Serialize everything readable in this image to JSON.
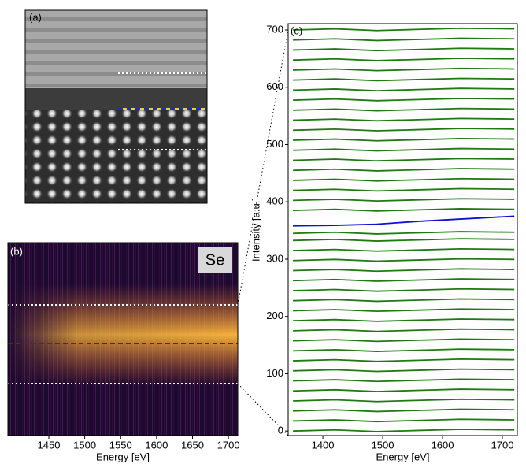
{
  "panels": {
    "a": {
      "label": "(a)"
    }
  },
  "chart_data": [
    {
      "type": "heatmap",
      "label": "(b)",
      "annotation": "Se",
      "xlabel": "Energy [eV]",
      "xlim": [
        1393,
        1713
      ],
      "xticks": [
        1450,
        1500,
        1550,
        1600,
        1650,
        1700
      ]
    },
    {
      "type": "line",
      "label": "(c)",
      "xlabel": "Energy [eV]",
      "ylabel": "Intensity [a.u.]",
      "color": "#1f7a12",
      "x": [
        1350,
        1420,
        1490,
        1560,
        1630,
        1720
      ],
      "series": [
        {
          "values": [
            0,
            2,
            -1,
            1,
            3,
            2
          ]
        },
        {
          "values": [
            17.5,
            19.5,
            16.5,
            18.5,
            20.5,
            19.5
          ]
        },
        {
          "values": [
            35,
            37,
            34,
            36,
            38,
            37
          ]
        },
        {
          "values": [
            52.5,
            54.5,
            51.5,
            53.5,
            55.5,
            54.5
          ]
        },
        {
          "values": [
            70,
            72,
            69,
            71,
            73,
            72
          ]
        },
        {
          "values": [
            87.5,
            89.5,
            86.5,
            88.5,
            90.5,
            89.5
          ]
        },
        {
          "values": [
            105,
            107,
            104,
            106,
            108,
            107
          ]
        },
        {
          "values": [
            122.5,
            124.5,
            121.5,
            123.5,
            125.5,
            124.5
          ]
        },
        {
          "values": [
            140,
            142,
            139,
            141,
            143,
            142
          ]
        },
        {
          "values": [
            157.5,
            159.5,
            156.5,
            158.5,
            160.5,
            159.5
          ]
        },
        {
          "values": [
            175,
            177,
            174,
            176,
            178,
            177
          ]
        },
        {
          "values": [
            192.5,
            194.5,
            191.5,
            193.5,
            195.5,
            194.5
          ]
        },
        {
          "values": [
            210,
            212,
            209,
            211,
            213,
            212
          ]
        },
        {
          "values": [
            227.5,
            229.5,
            226.5,
            228.5,
            230.5,
            229.5
          ]
        },
        {
          "values": [
            245,
            247,
            244,
            246,
            248,
            247
          ]
        },
        {
          "values": [
            262.5,
            264.5,
            261.5,
            263.5,
            265.5,
            264.5
          ]
        },
        {
          "values": [
            280,
            282,
            279,
            281,
            283,
            282
          ]
        },
        {
          "values": [
            297.5,
            299.5,
            296.5,
            298.5,
            300.5,
            299.5
          ]
        },
        {
          "values": [
            315,
            317,
            314,
            316,
            318,
            317
          ]
        },
        {
          "values": [
            332.5,
            334.5,
            331.5,
            333.5,
            335.5,
            334.5
          ]
        },
        {
          "values": [
            345,
            347,
            344,
            346,
            348,
            347
          ]
        },
        {
          "values": [
            358,
            359,
            361,
            366,
            370,
            375
          ],
          "color": "#1010d0"
        },
        {
          "values": [
            385,
            387,
            384,
            386,
            388,
            387
          ]
        },
        {
          "values": [
            402.5,
            404.5,
            401.5,
            403.5,
            405.5,
            404.5
          ]
        },
        {
          "values": [
            420,
            422,
            419,
            421,
            423,
            422
          ]
        },
        {
          "values": [
            437.5,
            439.5,
            436.5,
            438.5,
            440.5,
            439.5
          ]
        },
        {
          "values": [
            455,
            457,
            454,
            456,
            458,
            457
          ]
        },
        {
          "values": [
            472.5,
            474.5,
            471.5,
            473.5,
            475.5,
            474.5
          ]
        },
        {
          "values": [
            490,
            492,
            489,
            491,
            493,
            492
          ]
        },
        {
          "values": [
            507.5,
            509.5,
            506.5,
            508.5,
            510.5,
            509.5
          ]
        },
        {
          "values": [
            525,
            527,
            524,
            526,
            528,
            527
          ]
        },
        {
          "values": [
            542.5,
            544.5,
            541.5,
            543.5,
            545.5,
            544.5
          ]
        },
        {
          "values": [
            560,
            562,
            559,
            561,
            563,
            562
          ]
        },
        {
          "values": [
            577.5,
            579.5,
            576.5,
            578.5,
            580.5,
            579.5
          ]
        },
        {
          "values": [
            595,
            597,
            594,
            596,
            598,
            597
          ]
        },
        {
          "values": [
            612.5,
            614.5,
            611.5,
            613.5,
            615.5,
            614.5
          ]
        },
        {
          "values": [
            630,
            632,
            629,
            631,
            633,
            632
          ]
        },
        {
          "values": [
            647.5,
            649.5,
            646.5,
            648.5,
            650.5,
            649.5
          ]
        },
        {
          "values": [
            665,
            667,
            664,
            666,
            668,
            667
          ]
        },
        {
          "values": [
            682.5,
            684.5,
            681.5,
            683.5,
            685.5,
            684.5
          ]
        },
        {
          "values": [
            700,
            702,
            699,
            701,
            703,
            702
          ]
        }
      ],
      "xlim": [
        1342,
        1725
      ],
      "ylim": [
        -8,
        711
      ],
      "xticks": [
        1400,
        1500,
        1600,
        1700
      ],
      "yticks": [
        0,
        100,
        200,
        300,
        400,
        500,
        600,
        700
      ]
    }
  ]
}
